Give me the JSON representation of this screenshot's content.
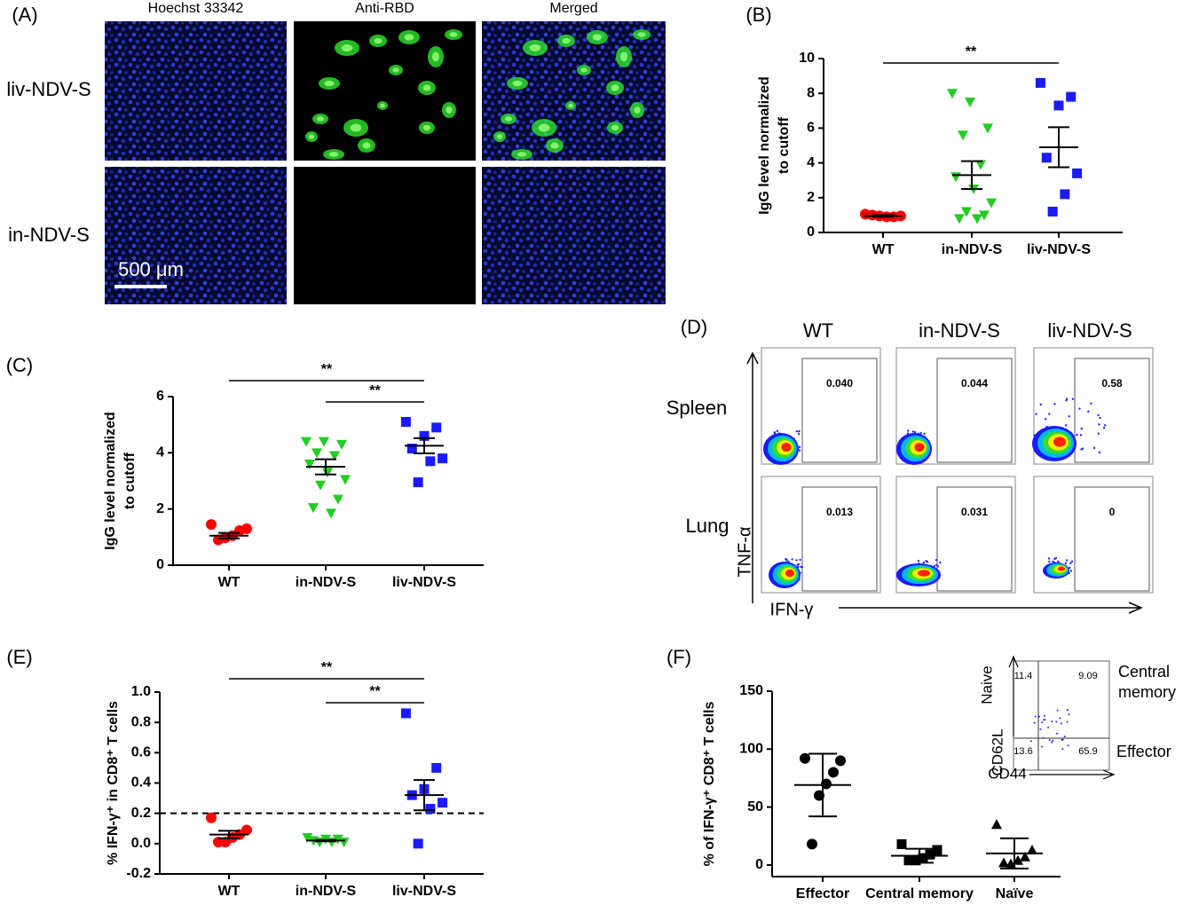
{
  "panel_a": {
    "panel": "(A)",
    "columns": [
      "Hoechst 33342",
      "Anti-RBD",
      "Merged"
    ],
    "rows": [
      "liv-NDV-S",
      "in-NDV-S"
    ],
    "scale_bar": "500 μm"
  },
  "panel_d": {
    "panel": "(D)",
    "columns": [
      "WT",
      "in-NDV-S",
      "liv-NDV-S"
    ],
    "rows": [
      "Spleen",
      "Lung"
    ],
    "gate_values": [
      [
        "0.040",
        "0.044",
        "0.58"
      ],
      [
        "0.013",
        "0.031",
        "0"
      ]
    ],
    "y_axis": "TNF-α",
    "x_axis": "IFN-γ"
  },
  "chart_data": [
    {
      "panel": "(B)",
      "type": "dot",
      "y_label": [
        "IgG level normalized",
        "to cutoff"
      ],
      "categories": [
        "WT",
        "in-NDV-S",
        "liv-NDV-S"
      ],
      "values": [
        [
          1.05,
          0.95,
          0.9,
          0.9,
          0.95,
          1.0
        ],
        [
          8.0,
          7.5,
          6.0,
          5.6,
          3.9,
          3.2,
          2.5,
          1.7,
          1.2,
          1.0,
          0.8,
          0.8
        ],
        [
          8.6,
          7.8,
          7.3,
          4.3,
          3.4,
          2.2,
          1.2
        ]
      ],
      "means": [
        0.95,
        3.3,
        4.9
      ],
      "errors": [
        0.05,
        0.8,
        1.15
      ],
      "colors": [
        "#ff0000",
        "#22cc22",
        "#1a1aff"
      ],
      "markers": [
        "circle",
        "triangle-down",
        "square"
      ],
      "ylim": [
        0,
        10
      ],
      "yticks": [
        0,
        2,
        4,
        6,
        8,
        10
      ],
      "significance": [
        {
          "between": [
            "WT",
            "liv-NDV-S"
          ],
          "label": "**"
        }
      ]
    },
    {
      "panel": "(C)",
      "type": "dot",
      "y_label": [
        "IgG level normalized",
        "to cutoff"
      ],
      "categories": [
        "WT",
        "in-NDV-S",
        "liv-NDV-S"
      ],
      "values": [
        [
          1.45,
          1.3,
          1.23,
          1.05,
          0.98,
          0.9
        ],
        [
          4.4,
          4.4,
          4.3,
          4.0,
          3.9,
          3.6,
          3.3,
          3.05,
          2.85,
          2.35,
          2.05,
          1.85
        ],
        [
          5.1,
          4.9,
          4.6,
          4.15,
          3.8,
          3.7,
          2.95
        ]
      ],
      "means": [
        1.05,
        3.5,
        4.25
      ],
      "errors": [
        0.1,
        0.27,
        0.27
      ],
      "colors": [
        "#ff0000",
        "#22cc22",
        "#1a1aff"
      ],
      "markers": [
        "circle",
        "triangle-down",
        "square"
      ],
      "ylim": [
        0,
        6
      ],
      "yticks": [
        0,
        2,
        4,
        6
      ],
      "significance": [
        {
          "between": [
            "WT",
            "liv-NDV-S"
          ],
          "label": "**"
        },
        {
          "between": [
            "in-NDV-S",
            "liv-NDV-S"
          ],
          "label": "**"
        }
      ]
    },
    {
      "panel": "(E)",
      "type": "dot",
      "y_label": [
        "% IFN-γ⁺ in CD8⁺ T cells"
      ],
      "categories": [
        "WT",
        "in-NDV-S",
        "liv-NDV-S"
      ],
      "values": [
        [
          0.17,
          0.09,
          0.06,
          0.04,
          0.01,
          0.01
        ],
        [
          0.04,
          0.03,
          0.03,
          0.02,
          0.01,
          0.01,
          0.01
        ],
        [
          0.86,
          0.5,
          0.36,
          0.32,
          0.27,
          0.23,
          0.0
        ]
      ],
      "means": [
        0.06,
        0.02,
        0.32
      ],
      "errors": [
        0.025,
        0.005,
        0.1
      ],
      "colors": [
        "#ff0000",
        "#22cc22",
        "#1a1aff"
      ],
      "markers": [
        "circle",
        "triangle-down",
        "square"
      ],
      "ylim": [
        -0.2,
        1.0
      ],
      "yticks": [
        -0.2,
        {
          "value": 0,
          "label": "0.0"
        },
        0.2,
        0.4,
        0.6,
        0.8,
        {
          "value": 1,
          "label": "1.0"
        }
      ],
      "reference_line": 0.2,
      "significance": [
        {
          "between": [
            "WT",
            "liv-NDV-S"
          ],
          "label": "**"
        },
        {
          "between": [
            "in-NDV-S",
            "liv-NDV-S"
          ],
          "label": "**"
        }
      ]
    },
    {
      "panel": "(F)",
      "type": "dot",
      "y_label": [
        "% of IFN-γ⁺ CD8⁺ T cells"
      ],
      "categories": [
        "Effector",
        "Central memory",
        "Naïve"
      ],
      "values": [
        [
          92,
          90,
          80,
          70,
          60,
          18
        ],
        [
          18,
          13,
          9,
          6,
          4,
          4
        ],
        [
          35,
          13,
          7,
          4,
          1,
          2
        ]
      ],
      "means": [
        69,
        8,
        10
      ],
      "errors": [
        27,
        6,
        13
      ],
      "colors": [
        "#000000",
        "#000000",
        "#000000"
      ],
      "markers": [
        "circle",
        "square",
        "triangle-up"
      ],
      "ylim": [
        -10,
        150
      ],
      "yticks": [
        0,
        50,
        100,
        150
      ],
      "inset": {
        "quadrants": [
          "11.4",
          "9.09",
          "13.6",
          "65.9"
        ],
        "y_axis": "Naive",
        "y_axis_lower": "CD62L",
        "x_axis": "CD44",
        "upper_label": [
          "Central",
          "memory"
        ],
        "lower_label": "Effector"
      }
    }
  ]
}
